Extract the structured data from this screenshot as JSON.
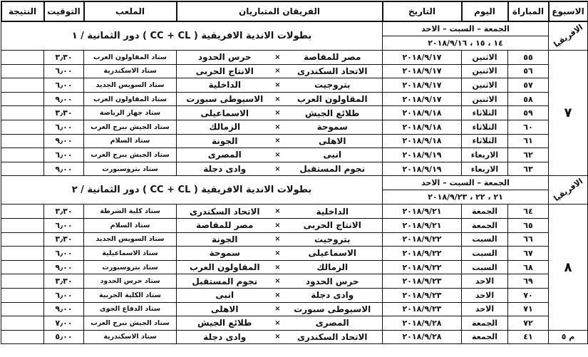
{
  "headers": {
    "week": "الاسبوع",
    "match": "المباراة",
    "day": "اليوم",
    "date": "التاريخ",
    "teams": "الفريقان المتباريان",
    "stadium": "الملعب",
    "time": "التوقيت",
    "result": "النتيجة"
  },
  "vs": "×",
  "sections": [
    {
      "tag": "الافريقيا",
      "days": "الجمعة – السبت – الاحد",
      "dates": "١٤ ، ١٥ ، ٢٠١٨/٩/١٦",
      "title": "بطولات الاندية الافريقية ( CC + CL ) دور الثمانية / ١",
      "week": "٧",
      "rows": [
        {
          "match": "٥٥",
          "day": "الاثنين",
          "date": "٢٠١٨/٩/١٧",
          "team1": "مصر للمقاصة",
          "team2": "حرس الحدود",
          "stadium": "ستاد المقاولون العرب",
          "time": "٣٫٣٠",
          "result": ""
        },
        {
          "match": "٥٦",
          "day": "الاثنين",
          "date": "٢٠١٨/٩/١٧",
          "team1": "الاتحاد السكندرى",
          "team2": "الانتاج الحربى",
          "stadium": "ستاد الاسكندرية",
          "time": "٦٫٠٠",
          "result": ""
        },
        {
          "match": "٥٧",
          "day": "الاثنين",
          "date": "٢٠١٨/٩/١٧",
          "team1": "بتروجيت",
          "team2": "الداخلية",
          "stadium": "ستاد السويس الجديد",
          "time": "٦٫٠٠",
          "result": ""
        },
        {
          "match": "٥٨",
          "day": "الاثنين",
          "date": "٢٠١٨/٩/١٧",
          "team1": "المقاولون العرب",
          "team2": "الاسيوطى سبورت",
          "stadium": "ستاد المقاولون العرب",
          "time": "٩٫٠٠",
          "result": ""
        },
        {
          "match": "٥٩",
          "day": "الثلاثاء",
          "date": "٢٠١٨/٩/١٨",
          "team1": "طلائع الجيش",
          "team2": "الاسماعيلى",
          "stadium": "ستاد جهاز الرياضة",
          "time": "٣٫٣٠",
          "result": ""
        },
        {
          "match": "٦٠",
          "day": "الثلاثاء",
          "date": "٢٠١٨/٩/١٨",
          "team1": "سموحة",
          "team2": "الزمالك",
          "stadium": "ستاد الجيش ببرج العرب",
          "time": "٦٫٠٠",
          "result": ""
        },
        {
          "match": "٦١",
          "day": "الثلاثاء",
          "date": "٢٠١٨/٩/١٨",
          "team1": "الاهلى",
          "team2": "الجونة",
          "stadium": "ستاد السلام",
          "time": "٩٫٠٠",
          "result": ""
        },
        {
          "match": "٦٢",
          "day": "الاربعاء",
          "date": "٢٠١٨/٩/١٩",
          "team1": "انبى",
          "team2": "المصرى",
          "stadium": "ستاد الجيش ببرج العرب",
          "time": "٦٫٠٠",
          "result": ""
        },
        {
          "match": "٦٣",
          "day": "الاربعاء",
          "date": "٢٠١٨/٩/١٩",
          "team1": "نجوم المستقبل",
          "team2": "وادى دجلة",
          "stadium": "ستاد بتروسبورت",
          "time": "٩٫٠٠",
          "result": ""
        }
      ]
    },
    {
      "tag": "الافريقيا",
      "days": "الجمعة – السبت – الاحد",
      "dates": "٢١ ، ٢٢ ، ٢٠١٨/٩/٢٣",
      "title": "بطولات الاندية الافريقية ( CC + CL ) دور الثمانية / ٢",
      "week": "٨",
      "rows": [
        {
          "match": "٦٤",
          "day": "الجمعة",
          "date": "٢٠١٨/٩/٢١",
          "team1": "الداخلية",
          "team2": "الاتحاد السكندرى",
          "stadium": "ستاد كلية الشرطة",
          "time": "٣٫٣٠",
          "result": ""
        },
        {
          "match": "٦٥",
          "day": "الجمعة",
          "date": "٢٠١٨/٩/٢١",
          "team1": "الانتاج الحربى",
          "team2": "مصر للمقاصة",
          "stadium": "ستاد السلام",
          "time": "٦٫٠٠",
          "result": ""
        },
        {
          "match": "٦٦",
          "day": "السبت",
          "date": "٢٠١٨/٩/٢٢",
          "team1": "بتروجيت",
          "team2": "الجونة",
          "stadium": "ستاد السويس الجديد",
          "time": "٣٫٣٠",
          "result": ""
        },
        {
          "match": "٦٧",
          "day": "السبت",
          "date": "٢٠١٨/٩/٢٢",
          "team1": "الاسماعيلى",
          "team2": "سموحة",
          "stadium": "ستاد الاسماعيلية",
          "time": "٦٫٠٠",
          "result": ""
        },
        {
          "match": "٦٨",
          "day": "السبت",
          "date": "٢٠١٨/٩/٢٢",
          "team1": "الزمالك",
          "team2": "المقاولون العرب",
          "stadium": "ستاد بتروسبورت",
          "time": "٩٫٠٠",
          "result": ""
        },
        {
          "match": "٦٩",
          "day": "الاحد",
          "date": "٢٠١٨/٩/٢٣",
          "team1": "حرس الحدود",
          "team2": "نجوم المستقبل",
          "stadium": "ستاد حرس الحدود",
          "time": "٣٫٣٠",
          "result": ""
        },
        {
          "match": "٧٠",
          "day": "الاحد",
          "date": "٢٠١٨/٩/٢٣",
          "team1": "وادى دجلة",
          "team2": "انبى",
          "stadium": "ستاد الكلية الحربية",
          "time": "٦٫٠٠",
          "result": ""
        },
        {
          "match": "٧١",
          "day": "الاحد",
          "date": "٢٠١٨/٩/٢٣",
          "team1": "الاسيوطى سبورت",
          "team2": "الاهلى",
          "stadium": "ستاد الدفاع الجوى",
          "time": "٩٫٠٠",
          "result": ""
        },
        {
          "match": "٧٢",
          "day": "الجمعة",
          "date": "٢٠١٨/٩/٢٨",
          "team1": "المصرى",
          "team2": "طلائع الجيش",
          "stadium": "ستاد الجيش ببرج العرب",
          "time": "٧٫٠٠",
          "result": ""
        }
      ]
    }
  ],
  "extra": {
    "week": "م ٥",
    "match": "٤١",
    "day": "الجمعة",
    "date": "٢٠١٨/٩/٢٨",
    "team1": "الاتحاد السكندرى",
    "team2": "وادى دجلة",
    "stadium": "ستاد الاسكندرية",
    "time": "٥٫٠٠",
    "result": ""
  }
}
